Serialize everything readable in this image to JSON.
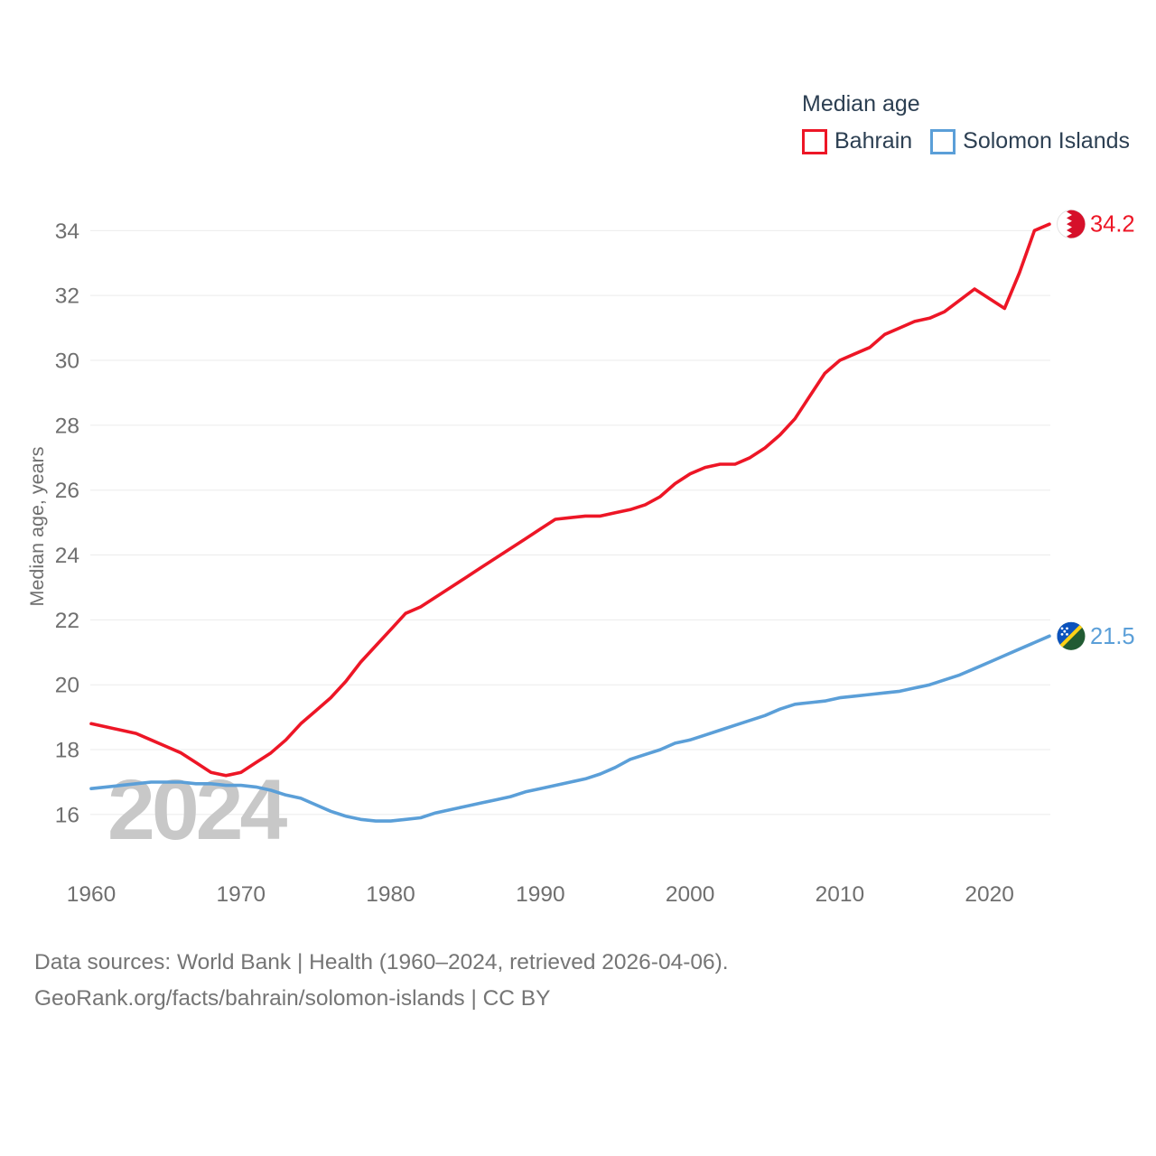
{
  "legend": {
    "title": "Median age",
    "items": [
      {
        "label": "Bahrain",
        "color": "#ed1626"
      },
      {
        "label": "Solomon Islands",
        "color": "#5b9fd8"
      }
    ]
  },
  "chart_data": {
    "type": "line",
    "title": "Median age",
    "ylabel": "Median age, years",
    "watermark": "2024",
    "grid": "horizontal",
    "legend_position": "top-right",
    "x_start": 1960,
    "x_end": 2024,
    "x_ticks": [
      1960,
      1970,
      1980,
      1990,
      2000,
      2010,
      2020
    ],
    "y_ticks": [
      16,
      18,
      20,
      22,
      24,
      26,
      28,
      30,
      32,
      34
    ],
    "ylim": [
      15.6,
      34.6
    ],
    "series": [
      {
        "name": "Bahrain",
        "color": "#ed1626",
        "flag_icon": "bahrain-flag-icon",
        "end_label": "34.2",
        "values": [
          18.8,
          18.7,
          18.6,
          18.5,
          18.3,
          18.1,
          17.9,
          17.6,
          17.3,
          17.2,
          17.3,
          17.6,
          17.9,
          18.3,
          18.8,
          19.2,
          19.6,
          20.1,
          20.7,
          21.2,
          21.7,
          22.2,
          22.4,
          22.7,
          23.0,
          23.3,
          23.6,
          23.9,
          24.2,
          24.5,
          24.8,
          25.1,
          25.15,
          25.2,
          25.2,
          25.3,
          25.4,
          25.55,
          25.8,
          26.2,
          26.5,
          26.7,
          26.8,
          26.8,
          27.0,
          27.3,
          27.7,
          28.2,
          28.9,
          29.6,
          30.0,
          30.2,
          30.4,
          30.8,
          31.0,
          31.2,
          31.3,
          31.5,
          31.85,
          32.2,
          31.9,
          31.6,
          32.7,
          34.0,
          34.2
        ]
      },
      {
        "name": "Solomon Islands",
        "color": "#5b9fd8",
        "flag_icon": "solomon-islands-flag-icon",
        "end_label": "21.5",
        "values": [
          16.8,
          16.85,
          16.9,
          16.95,
          17.0,
          17.0,
          17.0,
          16.95,
          16.95,
          16.9,
          16.9,
          16.85,
          16.75,
          16.6,
          16.5,
          16.3,
          16.1,
          15.95,
          15.85,
          15.8,
          15.8,
          15.85,
          15.9,
          16.05,
          16.15,
          16.25,
          16.35,
          16.45,
          16.55,
          16.7,
          16.8,
          16.9,
          17.0,
          17.1,
          17.25,
          17.45,
          17.7,
          17.85,
          18.0,
          18.2,
          18.3,
          18.45,
          18.6,
          18.75,
          18.9,
          19.05,
          19.25,
          19.4,
          19.45,
          19.5,
          19.6,
          19.65,
          19.7,
          19.75,
          19.8,
          19.9,
          20.0,
          20.15,
          20.3,
          20.5,
          20.7,
          20.9,
          21.1,
          21.3,
          21.5
        ]
      }
    ]
  },
  "footer": {
    "line1": "Data sources: World Bank | Health (1960–2024, retrieved 2026-04-06).",
    "line2": "GeoRank.org/facts/bahrain/solomon-islands | CC BY"
  }
}
